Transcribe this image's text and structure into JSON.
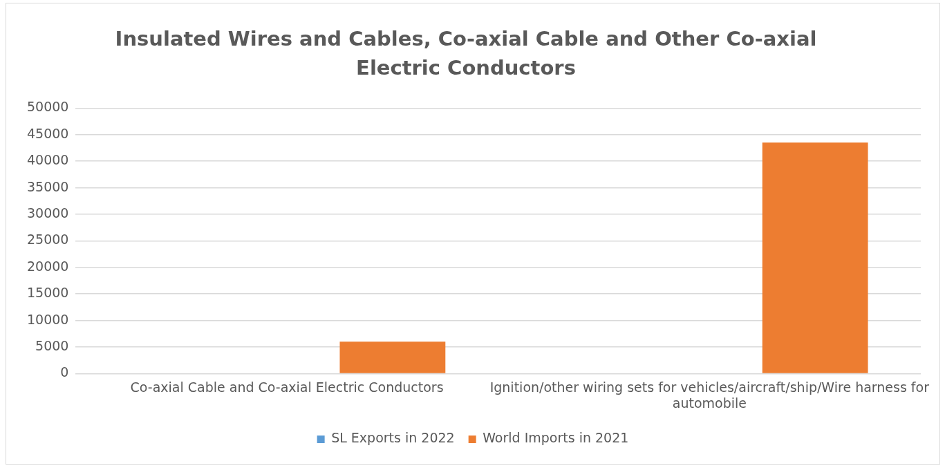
{
  "chart_data": {
    "type": "bar",
    "title": "Insulated Wires and Cables, Co-axial Cable and Other Co-axial Electric Conductors",
    "categories": [
      "Co-axial Cable and Co-axial Electric Conductors",
      "Ignition/other wiring sets for vehicles/aircraft/ship/Wire harness for automobile"
    ],
    "series": [
      {
        "name": "SL Exports in 2022",
        "color": "#5b9bd5",
        "values": [
          0,
          0
        ]
      },
      {
        "name": "World Imports in 2021",
        "color": "#ed7d31",
        "values": [
          6000,
          43500
        ]
      }
    ],
    "ylim": [
      0,
      50000
    ],
    "yticks": [
      0,
      5000,
      10000,
      15000,
      20000,
      25000,
      30000,
      35000,
      40000,
      45000,
      50000
    ],
    "grid": "y",
    "legend": "bottom"
  }
}
